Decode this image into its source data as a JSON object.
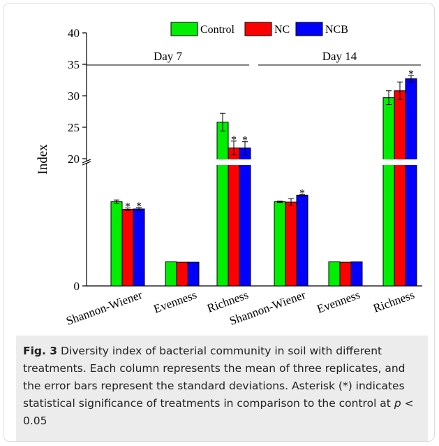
{
  "chart_data": {
    "type": "bar",
    "ylabel": "Index",
    "broken_axis": true,
    "series": [
      {
        "name": "Control",
        "color": "#00ee00",
        "values": [
          2.45,
          0.7,
          25.8,
          2.45,
          0.7,
          29.7
        ]
      },
      {
        "name": "NC",
        "color": "#ff0000",
        "values": [
          2.23,
          0.69,
          21.7,
          2.44,
          0.69,
          30.8
        ]
      },
      {
        "name": "NCB",
        "color": "#0000ff",
        "values": [
          2.24,
          0.69,
          21.7,
          2.64,
          0.7,
          32.7
        ]
      }
    ],
    "errors": [
      [
        0.05,
        0.0,
        1.4,
        0.02,
        0.0,
        1.1
      ],
      [
        0.04,
        0.0,
        1.1,
        0.1,
        0.0,
        1.4
      ],
      [
        0.04,
        0.0,
        1.0,
        0.02,
        0.0,
        0.5
      ]
    ],
    "significance": [
      [
        false,
        false,
        false,
        false,
        false,
        false
      ],
      [
        true,
        false,
        true,
        false,
        false,
        false
      ],
      [
        true,
        false,
        true,
        true,
        false,
        true
      ]
    ],
    "categories": [
      "Shannon-Wiener",
      "Evenness",
      "Richness",
      "Shannon-Wiener",
      "Evenness",
      "Richness"
    ],
    "groups": [
      {
        "label": "Day 7",
        "categories": [
          0,
          1,
          2
        ]
      },
      {
        "label": "Day 14",
        "categories": [
          3,
          4,
          5
        ]
      }
    ],
    "upper_axis": {
      "ylim": [
        20,
        40
      ],
      "ticks": [
        "20",
        "25",
        "30",
        "35",
        "40"
      ]
    },
    "lower_axis": {
      "ylim": [
        0,
        3.5
      ],
      "ticks": [
        "0"
      ]
    },
    "significance_marker": "*",
    "legend_position": "top-center"
  },
  "caption": {
    "label": "Fig. 3",
    "text_main": "Diversity index of bacterial community in soil with different treatments. Each column represents the mean of three replicates, and the error bars represent the standard deviations. Asterisk (*) indicates statistical significance of treatments in comparison to the control at",
    "p_symbol": "p",
    "p_condition": "< 0.05"
  }
}
